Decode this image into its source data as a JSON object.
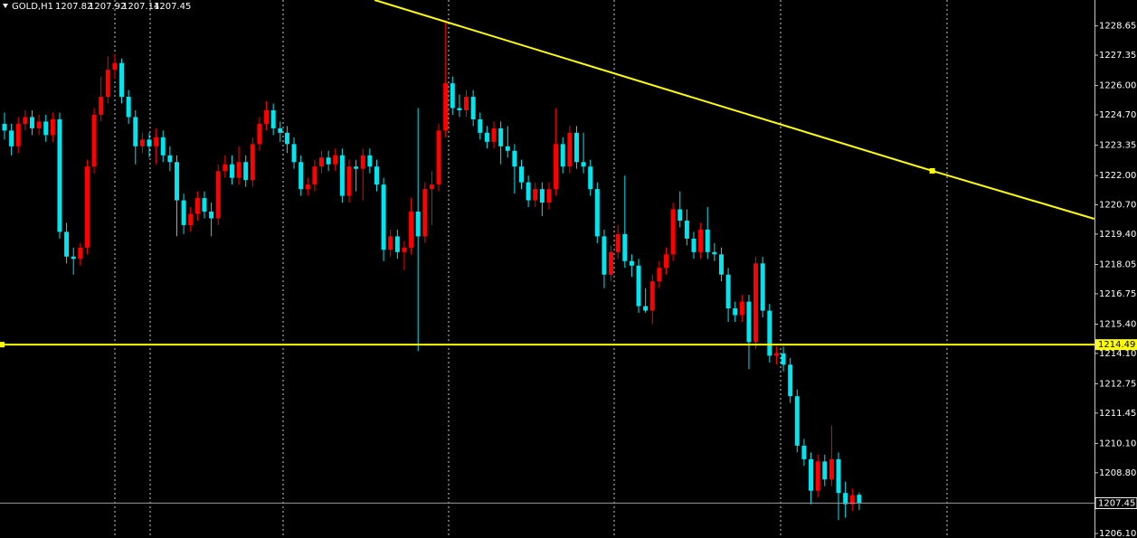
{
  "chart_data": {
    "type": "candlestick",
    "symbol": "GOLD,H1",
    "up_color": "#ff0000",
    "down_color": "#00e5ee",
    "grid": false,
    "ylim": [
      1205.9,
      1229.8
    ],
    "yticks": [
      1228.65,
      1227.35,
      {
        "value": 1226,
        "label": "1226.00"
      },
      {
        "value": 1224.7,
        "label": "1224.70"
      },
      1223.35,
      {
        "value": 1222,
        "label": "1222.00"
      },
      {
        "value": 1220.7,
        "label": "1220.70"
      },
      {
        "value": 1219.4,
        "label": "1219.40"
      },
      1218.05,
      1216.75,
      {
        "value": 1215.4,
        "label": "1215.40"
      },
      {
        "value": 1214.1,
        "label": "1214.10"
      },
      1212.75,
      1211.45,
      {
        "value": 1210.1,
        "label": "1210.10"
      },
      {
        "value": 1208.8,
        "label": "1208.80"
      },
      {
        "value": 1206.1,
        "label": "1206.10"
      }
    ],
    "hline": {
      "value": 1214.49,
      "color": "#ffff00"
    },
    "trendline": {
      "color": "#ffff00",
      "points": [
        {
          "x": 53.7,
          "y": 1229.8
        },
        {
          "x": 134.6,
          "y": 1222.21
        },
        {
          "x": 158.1,
          "y": 1220.08
        }
      ]
    },
    "candles": [
      [
        1224.3,
        1224.8,
        1223.6,
        1224.0
      ],
      [
        1224.0,
        1224.3,
        1222.9,
        1223.3
      ],
      [
        1223.3,
        1224.6,
        1223.0,
        1224.3
      ],
      [
        1224.3,
        1224.9,
        1224.0,
        1224.6
      ],
      [
        1224.6,
        1224.9,
        1223.8,
        1224.1
      ],
      [
        1224.1,
        1224.7,
        1223.8,
        1224.4
      ],
      [
        1224.4,
        1224.7,
        1223.5,
        1223.8
      ],
      [
        1223.8,
        1224.8,
        1223.5,
        1224.5
      ],
      [
        1224.5,
        1224.8,
        1219.2,
        1219.5
      ],
      [
        1219.5,
        1219.9,
        1218.1,
        1218.4
      ],
      [
        1218.4,
        1218.8,
        1217.6,
        1218.3
      ],
      [
        1218.3,
        1219.0,
        1218.0,
        1218.8
      ],
      [
        1218.8,
        1222.7,
        1218.5,
        1222.4
      ],
      [
        1222.4,
        1225.0,
        1222.1,
        1224.7
      ],
      [
        1224.7,
        1226.4,
        1224.4,
        1225.5
      ],
      [
        1225.5,
        1227.3,
        1225.2,
        1226.7
      ],
      [
        1226.7,
        1227.4,
        1226.3,
        1227.0
      ],
      [
        1227.0,
        1227.2,
        1225.2,
        1225.5
      ],
      [
        1225.5,
        1225.8,
        1224.3,
        1224.6
      ],
      [
        1224.6,
        1224.9,
        1222.5,
        1223.3
      ],
      [
        1223.3,
        1223.9,
        1223.0,
        1223.6
      ],
      [
        1223.6,
        1223.9,
        1222.8,
        1223.3
      ],
      [
        1223.3,
        1224.1,
        1222.5,
        1223.7
      ],
      [
        1223.7,
        1224.0,
        1222.6,
        1222.9
      ],
      [
        1222.9,
        1223.3,
        1222.2,
        1222.6
      ],
      [
        1222.6,
        1222.9,
        1219.3,
        1220.9
      ],
      [
        1220.9,
        1221.2,
        1219.4,
        1219.8
      ],
      [
        1219.8,
        1220.6,
        1219.5,
        1220.3
      ],
      [
        1220.3,
        1221.3,
        1220.0,
        1221.0
      ],
      [
        1221.0,
        1221.3,
        1220.1,
        1220.4
      ],
      [
        1220.4,
        1220.8,
        1219.3,
        1220.1
      ],
      [
        1220.1,
        1222.5,
        1219.8,
        1222.2
      ],
      [
        1222.2,
        1222.9,
        1221.9,
        1222.5
      ],
      [
        1222.5,
        1222.9,
        1221.6,
        1221.9
      ],
      [
        1221.9,
        1223.3,
        1221.6,
        1222.6
      ],
      [
        1222.6,
        1222.9,
        1221.5,
        1221.8
      ],
      [
        1221.8,
        1223.7,
        1221.5,
        1223.4
      ],
      [
        1223.4,
        1224.6,
        1223.1,
        1224.3
      ],
      [
        1224.3,
        1225.3,
        1224.0,
        1224.9
      ],
      [
        1224.9,
        1225.2,
        1223.8,
        1224.1
      ],
      [
        1224.1,
        1224.4,
        1223.5,
        1223.9
      ],
      [
        1223.9,
        1224.2,
        1223.0,
        1223.4
      ],
      [
        1223.4,
        1223.7,
        1222.3,
        1222.6
      ],
      [
        1222.6,
        1222.9,
        1221.1,
        1221.4
      ],
      [
        1221.4,
        1221.9,
        1221.1,
        1221.6
      ],
      [
        1221.6,
        1222.7,
        1221.3,
        1222.4
      ],
      [
        1222.4,
        1223.1,
        1222.1,
        1222.8
      ],
      [
        1222.8,
        1223.1,
        1222.2,
        1222.5
      ],
      [
        1222.5,
        1223.2,
        1222.2,
        1222.9
      ],
      [
        1222.9,
        1223.2,
        1220.8,
        1221.1
      ],
      [
        1221.1,
        1222.7,
        1220.8,
        1222.4
      ],
      [
        1222.4,
        1222.7,
        1221.3,
        1222.3
      ],
      [
        1222.3,
        1223.2,
        1220.9,
        1222.9
      ],
      [
        1222.9,
        1223.2,
        1222.1,
        1222.4
      ],
      [
        1222.4,
        1222.7,
        1221.3,
        1221.6
      ],
      [
        1221.6,
        1221.9,
        1218.2,
        1218.7
      ],
      [
        1218.7,
        1219.6,
        1218.4,
        1219.3
      ],
      [
        1219.3,
        1219.6,
        1218.3,
        1218.6
      ],
      [
        1218.6,
        1219.1,
        1217.8,
        1218.8
      ],
      [
        1218.8,
        1221.0,
        1218.5,
        1220.4
      ],
      [
        1220.4,
        1225.0,
        1214.2,
        1219.3
      ],
      [
        1219.3,
        1221.7,
        1219.0,
        1221.4
      ],
      [
        1221.4,
        1222.2,
        1219.8,
        1221.6
      ],
      [
        1221.6,
        1224.3,
        1221.3,
        1224.0
      ],
      [
        1224.0,
        1228.9,
        1223.7,
        1226.1
      ],
      [
        1226.1,
        1226.4,
        1224.7,
        1225.0
      ],
      [
        1225.0,
        1225.6,
        1224.6,
        1224.9
      ],
      [
        1224.9,
        1225.8,
        1224.6,
        1225.5
      ],
      [
        1225.5,
        1225.8,
        1224.2,
        1224.5
      ],
      [
        1224.5,
        1224.8,
        1223.6,
        1223.9
      ],
      [
        1223.9,
        1224.2,
        1223.2,
        1223.5
      ],
      [
        1223.5,
        1224.4,
        1223.2,
        1224.1
      ],
      [
        1224.1,
        1224.4,
        1222.5,
        1223.3
      ],
      [
        1223.3,
        1224.2,
        1222.8,
        1223.1
      ],
      [
        1223.1,
        1223.4,
        1221.2,
        1222.4
      ],
      [
        1222.4,
        1222.7,
        1221.4,
        1221.7
      ],
      [
        1221.7,
        1222.0,
        1220.6,
        1220.9
      ],
      [
        1220.9,
        1221.7,
        1220.6,
        1221.4
      ],
      [
        1221.4,
        1221.7,
        1220.2,
        1220.8
      ],
      [
        1220.8,
        1221.7,
        1220.5,
        1221.4
      ],
      [
        1221.4,
        1225.0,
        1221.1,
        1223.4
      ],
      [
        1223.4,
        1223.7,
        1222.1,
        1222.4
      ],
      [
        1222.4,
        1224.2,
        1222.1,
        1223.9
      ],
      [
        1223.9,
        1224.2,
        1222.3,
        1222.6
      ],
      [
        1222.6,
        1223.9,
        1222.1,
        1222.4
      ],
      [
        1222.4,
        1222.7,
        1221.1,
        1221.4
      ],
      [
        1221.4,
        1221.7,
        1219.0,
        1219.3
      ],
      [
        1219.3,
        1219.6,
        1217.0,
        1217.6
      ],
      [
        1217.6,
        1218.9,
        1217.3,
        1218.6
      ],
      [
        1218.6,
        1219.8,
        1218.3,
        1219.4
      ],
      [
        1219.4,
        1222.0,
        1217.9,
        1218.2
      ],
      [
        1218.2,
        1218.5,
        1217.5,
        1218.0
      ],
      [
        1218.0,
        1218.3,
        1215.9,
        1216.2
      ],
      [
        1216.2,
        1217.0,
        1215.9,
        1216.0
      ],
      [
        1216.0,
        1217.6,
        1215.4,
        1217.3
      ],
      [
        1217.3,
        1218.2,
        1217.0,
        1217.9
      ],
      [
        1217.9,
        1218.8,
        1217.6,
        1218.5
      ],
      [
        1218.5,
        1220.8,
        1218.2,
        1220.5
      ],
      [
        1220.5,
        1221.3,
        1219.7,
        1220.0
      ],
      [
        1220.0,
        1220.5,
        1218.9,
        1219.2
      ],
      [
        1219.2,
        1219.5,
        1218.3,
        1218.6
      ],
      [
        1218.6,
        1219.9,
        1218.3,
        1219.6
      ],
      [
        1219.6,
        1220.6,
        1218.3,
        1218.6
      ],
      [
        1218.6,
        1219.0,
        1218.2,
        1218.5
      ],
      [
        1218.5,
        1218.8,
        1217.3,
        1217.6
      ],
      [
        1217.6,
        1217.9,
        1215.5,
        1216.1
      ],
      [
        1216.1,
        1216.4,
        1215.5,
        1215.8
      ],
      [
        1215.8,
        1216.7,
        1215.5,
        1216.4
      ],
      [
        1216.4,
        1216.7,
        1213.4,
        1214.6
      ],
      [
        1214.6,
        1218.4,
        1214.3,
        1218.1
      ],
      [
        1218.1,
        1218.4,
        1215.7,
        1216.0
      ],
      [
        1216.0,
        1216.3,
        1213.7,
        1214.0
      ],
      [
        1214.0,
        1214.4,
        1213.6,
        1214.1
      ],
      [
        1214.1,
        1214.4,
        1213.3,
        1213.6
      ],
      [
        1213.6,
        1213.9,
        1211.9,
        1212.2
      ],
      [
        1212.2,
        1212.5,
        1209.7,
        1210.0
      ],
      [
        1210.0,
        1210.3,
        1209.1,
        1209.4
      ],
      [
        1209.4,
        1209.7,
        1207.4,
        1208.0
      ],
      [
        1208.0,
        1209.6,
        1207.7,
        1209.3
      ],
      [
        1209.3,
        1209.6,
        1208.2,
        1208.5
      ],
      [
        1208.5,
        1210.9,
        1208.2,
        1209.4
      ],
      [
        1209.4,
        1209.7,
        1206.7,
        1207.9
      ],
      [
        1207.9,
        1208.4,
        1206.8,
        1207.4
      ],
      [
        1207.4,
        1208.1,
        1207.1,
        1207.8
      ],
      [
        1207.82,
        1207.92,
        1207.14,
        1207.45
      ]
    ]
  }
}
